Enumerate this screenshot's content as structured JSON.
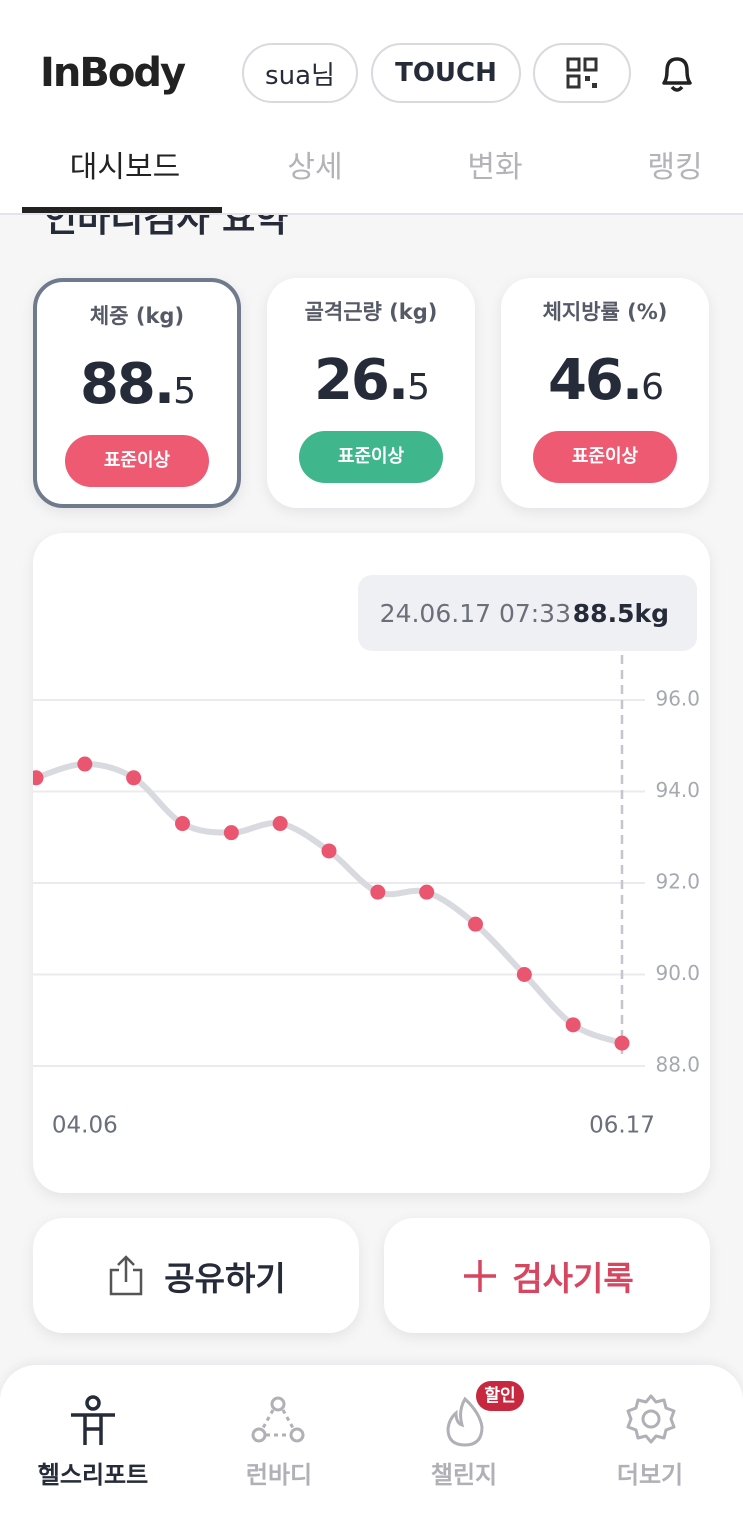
{
  "header": {
    "logo": "InBody",
    "user": "sua님",
    "touch": "TOUCH"
  },
  "tabs": [
    "대시보드",
    "상세",
    "변화",
    "랭킹"
  ],
  "section_title": "인바디검사 요약",
  "cards": [
    {
      "label": "체중 (kg)",
      "value": "88.5",
      "status": "표준이상",
      "status_color": "#ef5a73"
    },
    {
      "label": "골격근량 (kg)",
      "value": "26.5",
      "status": "표준이상",
      "status_color": "#3fb68b"
    },
    {
      "label": "체지방률 (%)",
      "value": "46.6",
      "status": "표준이상",
      "status_color": "#ef5a73"
    }
  ],
  "chart_data": {
    "type": "line",
    "tooltip": {
      "date": "24.06.17 07:33",
      "value": "88.5kg"
    },
    "categories": [
      null,
      "04.06",
      null,
      null,
      null,
      null,
      null,
      null,
      null,
      null,
      null,
      null,
      "06.17"
    ],
    "series": [
      {
        "name": "체중",
        "color": "#ea5570",
        "line_color": "#d9d9e0",
        "values": [
          94.3,
          94.6,
          94.3,
          93.3,
          93.1,
          93.3,
          92.7,
          91.8,
          91.8,
          91.1,
          90.0,
          88.9,
          88.5
        ]
      }
    ],
    "ylim": [
      88,
      97
    ],
    "yticks": [
      {
        "value": 88,
        "label": "88.0"
      },
      {
        "value": 90,
        "label": "90.0"
      },
      {
        "value": 92,
        "label": "92.0"
      },
      {
        "value": 94,
        "label": "94.0"
      },
      {
        "value": 96,
        "label": "96.0"
      }
    ],
    "grid": true
  },
  "buttons": {
    "share": "공유하기",
    "record": "검사기록"
  },
  "nav": {
    "items": [
      "헬스리포트",
      "런바디",
      "챌린지",
      "더보기"
    ],
    "badge": "할인"
  }
}
